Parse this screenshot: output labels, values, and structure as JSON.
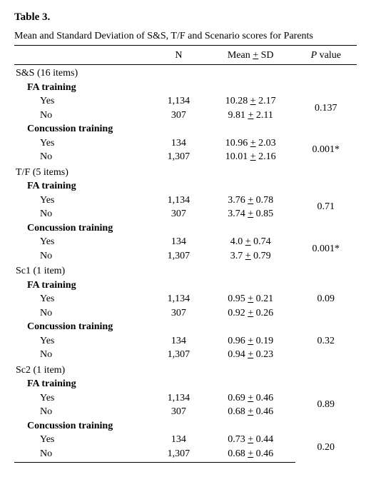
{
  "title": "Table 3.",
  "caption": "Mean and Standard Deviation of S&S, T/F and Scenario scores for Parents",
  "columns": {
    "label": "",
    "n": "N",
    "msd_prefix": "Mean ",
    "msd_suffix": " SD",
    "p_prefix": "P",
    "p_suffix": " value"
  },
  "col_widths": [
    "40%",
    "16%",
    "26%",
    "18%"
  ],
  "pm": "+",
  "sections": [
    {
      "header": "S&S (16 items)",
      "groups": [
        {
          "name": "FA training",
          "rows": [
            {
              "label": "Yes",
              "n": "1,134",
              "mean": "10.28",
              "sd": "2.17"
            },
            {
              "label": "No",
              "n": "307",
              "mean": "9.81",
              "sd": "2.11"
            }
          ],
          "p": "0.137"
        },
        {
          "name": "Concussion training",
          "rows": [
            {
              "label": "Yes",
              "n": "134",
              "mean": "10.96",
              "sd": "2.03"
            },
            {
              "label": "No",
              "n": "1,307",
              "mean": "10.01",
              "sd": "2.16"
            }
          ],
          "p": "0.001*"
        }
      ]
    },
    {
      "header": "T/F (5 items)",
      "groups": [
        {
          "name": "FA training",
          "rows": [
            {
              "label": "Yes",
              "n": "1,134",
              "mean": "3.76",
              "sd": "0.78"
            },
            {
              "label": "No",
              "n": "307",
              "mean": "3.74",
              "sd": "0.85"
            }
          ],
          "p": "0.71"
        },
        {
          "name": "Concussion training",
          "rows": [
            {
              "label": "Yes",
              "n": "134",
              "mean": "4.0",
              "sd": "0.74"
            },
            {
              "label": "No",
              "n": "1,307",
              "mean": "3.7",
              "sd": "0.79"
            }
          ],
          "p": "0.001*"
        }
      ]
    },
    {
      "header": "Sc1 (1 item)",
      "groups": [
        {
          "name": "FA training",
          "rows": [
            {
              "label": "Yes",
              "n": "1,134",
              "mean": "0.95",
              "sd": "0.21"
            },
            {
              "label": "No",
              "n": "307",
              "mean": "0.92",
              "sd": "0.26"
            }
          ],
          "p": "0.09",
          "p_row": 0
        },
        {
          "name": "Concussion training",
          "rows": [
            {
              "label": "Yes",
              "n": "134",
              "mean": "0.96",
              "sd": "0.19"
            },
            {
              "label": "No",
              "n": "1,307",
              "mean": "0.94",
              "sd": "0.23"
            }
          ],
          "p": "0.32",
          "p_row": 0
        }
      ]
    },
    {
      "header": "Sc2 (1 item)",
      "groups": [
        {
          "name": "FA training",
          "rows": [
            {
              "label": "Yes",
              "n": "1,134",
              "mean": "0.69",
              "sd": "0.46"
            },
            {
              "label": "No",
              "n": "307",
              "mean": "0.68",
              "sd": "0.46"
            }
          ],
          "p": "0.89"
        },
        {
          "name": "Concussion training",
          "rows": [
            {
              "label": "Yes",
              "n": "134",
              "mean": "0.73",
              "sd": "0.44"
            },
            {
              "label": "No",
              "n": "1,307",
              "mean": "0.68",
              "sd": "0.46"
            }
          ],
          "p": "0.20"
        }
      ]
    }
  ]
}
